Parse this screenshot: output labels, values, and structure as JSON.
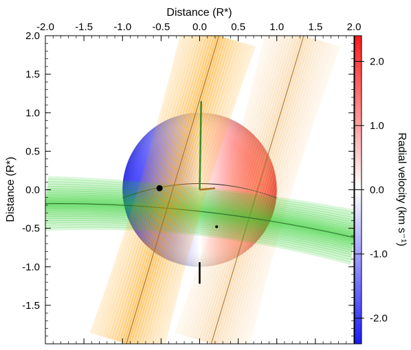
{
  "chart_data": {
    "type": "scatter",
    "title": "",
    "xlabel": "Distance (R*)",
    "ylabel": "Distance (R*)",
    "colorbar_label": "Radial velocity (km s⁻¹)",
    "xlim": [
      -2.0,
      2.0
    ],
    "ylim": [
      -2.0,
      2.0
    ],
    "x_ticks": [
      "-2.0",
      "-1.5",
      "-1.0",
      "-0.5",
      "0.0",
      "0.5",
      "1.0",
      "1.5",
      "2.0"
    ],
    "y_ticks": [
      "2.0",
      "1.5",
      "1.0",
      "0.5",
      "0.0",
      "-0.5",
      "-1.0",
      "-1.5"
    ],
    "colorbar_ticks": [
      "2.0",
      "1.0",
      "0.0",
      "-1.0",
      "-2.0"
    ],
    "colorbar_range": [
      -2.4,
      2.4
    ],
    "colors": {
      "approaching": "#1a1aff",
      "receding": "#ff1a1a",
      "orbit_band_a": "#ff9f00",
      "orbit_band_b": "#f7c27a",
      "orbit_band_c": "#22cc22"
    },
    "star": {
      "center": [
        0.0,
        0.0
      ],
      "radius": 1.0
    },
    "orbit_bands": [
      {
        "name": "a",
        "center_line": [
          [
            -0.95,
            -2.0
          ],
          [
            0.25,
            2.0
          ]
        ],
        "width": 0.7
      },
      {
        "name": "b",
        "center_line": [
          [
            0.15,
            -2.0
          ],
          [
            1.35,
            2.0
          ]
        ],
        "width": 0.7
      },
      {
        "name": "c",
        "center_line": [
          [
            -2.0,
            -0.18
          ],
          [
            2.0,
            -0.62
          ]
        ],
        "width": 0.5,
        "curvature": -0.04
      }
    ],
    "markers": [
      {
        "x": -0.52,
        "y": 0.02,
        "kind": "large-dot"
      },
      {
        "x": 0.22,
        "y": -0.48,
        "kind": "small-dot"
      }
    ],
    "segments": [
      {
        "from": [
          0.0,
          -0.94
        ],
        "to": [
          0.0,
          -1.22
        ]
      }
    ],
    "projected_axes": [
      {
        "from": [
          0.0,
          0.0
        ],
        "to": [
          0.02,
          1.15
        ]
      },
      {
        "from": [
          0.0,
          0.0
        ],
        "to": [
          0.2,
          0.02
        ]
      }
    ]
  }
}
